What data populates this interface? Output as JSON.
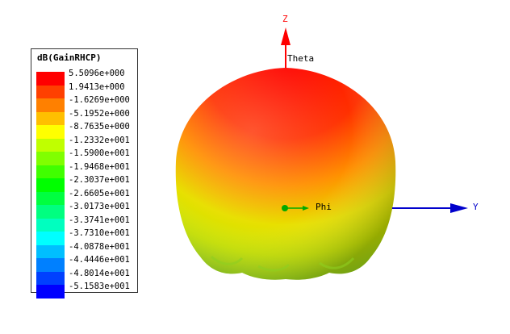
{
  "legend": {
    "title": "dB(GainRHCP)",
    "values": [
      "5.5096e+000",
      "1.9413e+000",
      "-1.6269e+000",
      "-5.1952e+000",
      "-8.7635e+000",
      "-1.2332e+001",
      "-1.5900e+001",
      "-1.9468e+001",
      "-2.3037e+001",
      "-2.6605e+001",
      "-3.0173e+001",
      "-3.3741e+001",
      "-3.7310e+001",
      "-4.0878e+001",
      "-4.4446e+001",
      "-4.8014e+001",
      "-5.1583e+001"
    ],
    "colors": [
      "#ff0000",
      "#ff4000",
      "#ff8000",
      "#ffbf00",
      "#ffff00",
      "#c0ff00",
      "#80ff00",
      "#40ff00",
      "#00ff00",
      "#00ff40",
      "#00ff80",
      "#00ffbf",
      "#00ffff",
      "#00bfff",
      "#0080ff",
      "#0040ff",
      "#0000ff"
    ]
  },
  "axes": {
    "z_label": "Z",
    "y_label": "Y",
    "theta_label": "Theta",
    "phi_label": "Phi",
    "z_color": "#ff0000",
    "y_color": "#0000cc",
    "phi_color": "#00aa00"
  }
}
